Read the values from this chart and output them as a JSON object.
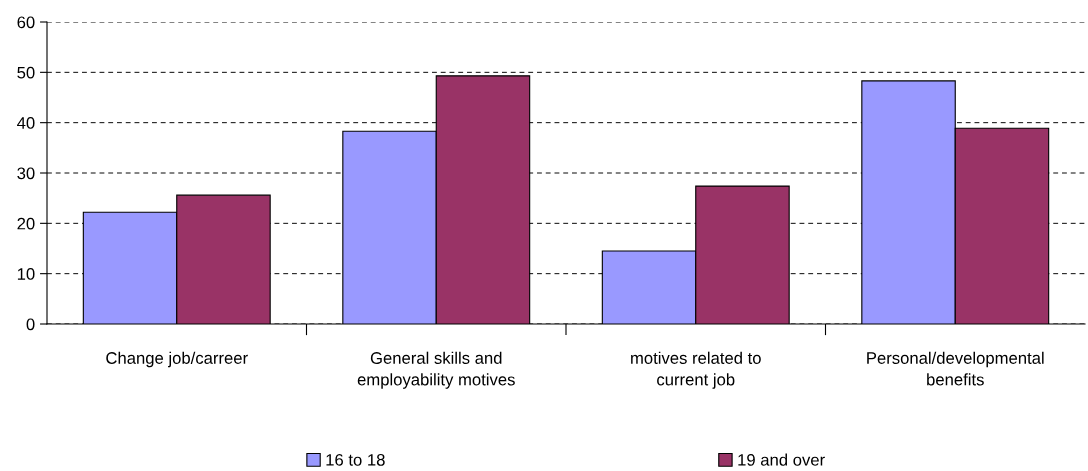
{
  "chart_data": {
    "type": "bar",
    "categories": [
      "Change job/carreer",
      "General skills and\nemployability motives",
      "motives related to\ncurrent job",
      "Personal/developmental\nbenefits"
    ],
    "series": [
      {
        "name": "16 to 18",
        "color": "#9999ff",
        "values": [
          22.2,
          38.3,
          14.5,
          48.3
        ]
      },
      {
        "name": "19 and over",
        "color": "#993366",
        "values": [
          25.6,
          49.3,
          27.4,
          38.9
        ]
      }
    ],
    "ylim": [
      0,
      60
    ],
    "yticks": [
      0,
      10,
      20,
      30,
      40,
      50,
      60
    ],
    "grid": "y",
    "line_style": "dashed",
    "legend": "bottom"
  }
}
